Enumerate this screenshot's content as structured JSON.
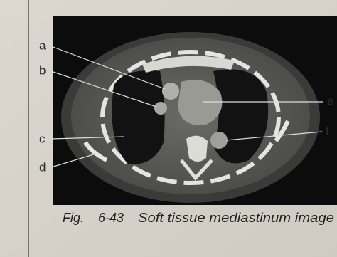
{
  "figure": {
    "labels": {
      "a": "a",
      "b": "b",
      "c": "c",
      "d": "d",
      "e": "e",
      "f": "f"
    },
    "caption": {
      "prefix": "Fig.",
      "number": "6-43",
      "title": "Soft tissue mediastinum image"
    }
  }
}
